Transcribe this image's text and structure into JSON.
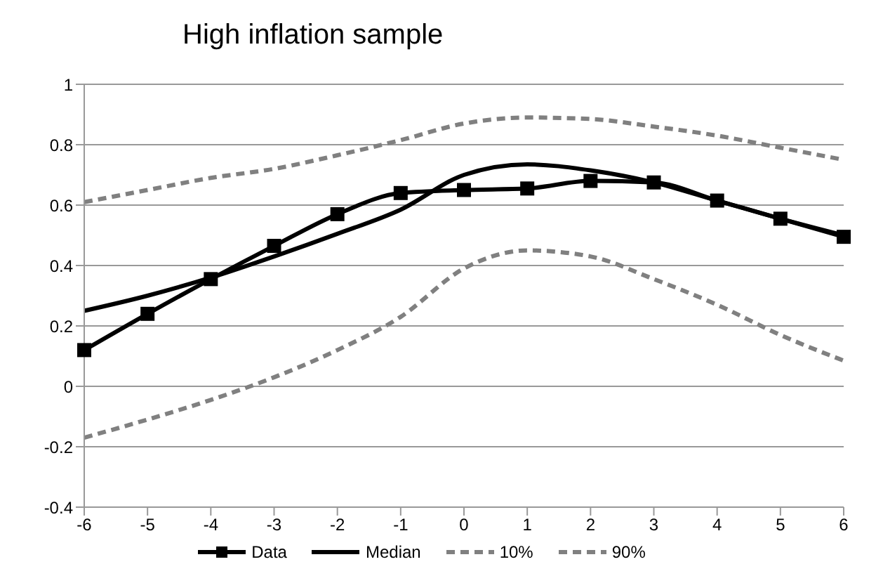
{
  "chart_data": {
    "type": "line",
    "title": "High inflation sample",
    "categories": [
      "-6",
      "-5",
      "-4",
      "-3",
      "-2",
      "-1",
      "0",
      "1",
      "2",
      "3",
      "4",
      "5",
      "6"
    ],
    "series": [
      {
        "name": "Data",
        "color": "#000000",
        "marker": "square",
        "line_style": "solid",
        "values": [
          0.12,
          0.24,
          0.355,
          0.465,
          0.57,
          0.64,
          0.65,
          0.655,
          0.68,
          0.675,
          0.615,
          0.555,
          0.495
        ]
      },
      {
        "name": "Median",
        "color": "#000000",
        "marker": "none",
        "line_style": "solid",
        "values": [
          0.25,
          0.3,
          0.36,
          0.43,
          0.505,
          0.585,
          0.7,
          0.735,
          0.715,
          0.675,
          0.615,
          0.555,
          0.5
        ]
      },
      {
        "name": "10%",
        "color": "#808080",
        "marker": "none",
        "line_style": "dashed",
        "values": [
          -0.17,
          -0.11,
          -0.045,
          0.03,
          0.12,
          0.23,
          0.39,
          0.45,
          0.43,
          0.355,
          0.27,
          0.17,
          0.085
        ]
      },
      {
        "name": "90%",
        "color": "#808080",
        "marker": "none",
        "line_style": "dashed",
        "values": [
          0.61,
          0.65,
          0.69,
          0.72,
          0.765,
          0.815,
          0.87,
          0.89,
          0.885,
          0.86,
          0.83,
          0.79,
          0.75
        ]
      }
    ],
    "ylim": [
      -0.4,
      1
    ],
    "yticks": [
      -0.4,
      -0.2,
      0,
      0.2,
      0.4,
      0.6,
      0.8,
      1
    ],
    "grid": "y",
    "legend": "bottom"
  }
}
